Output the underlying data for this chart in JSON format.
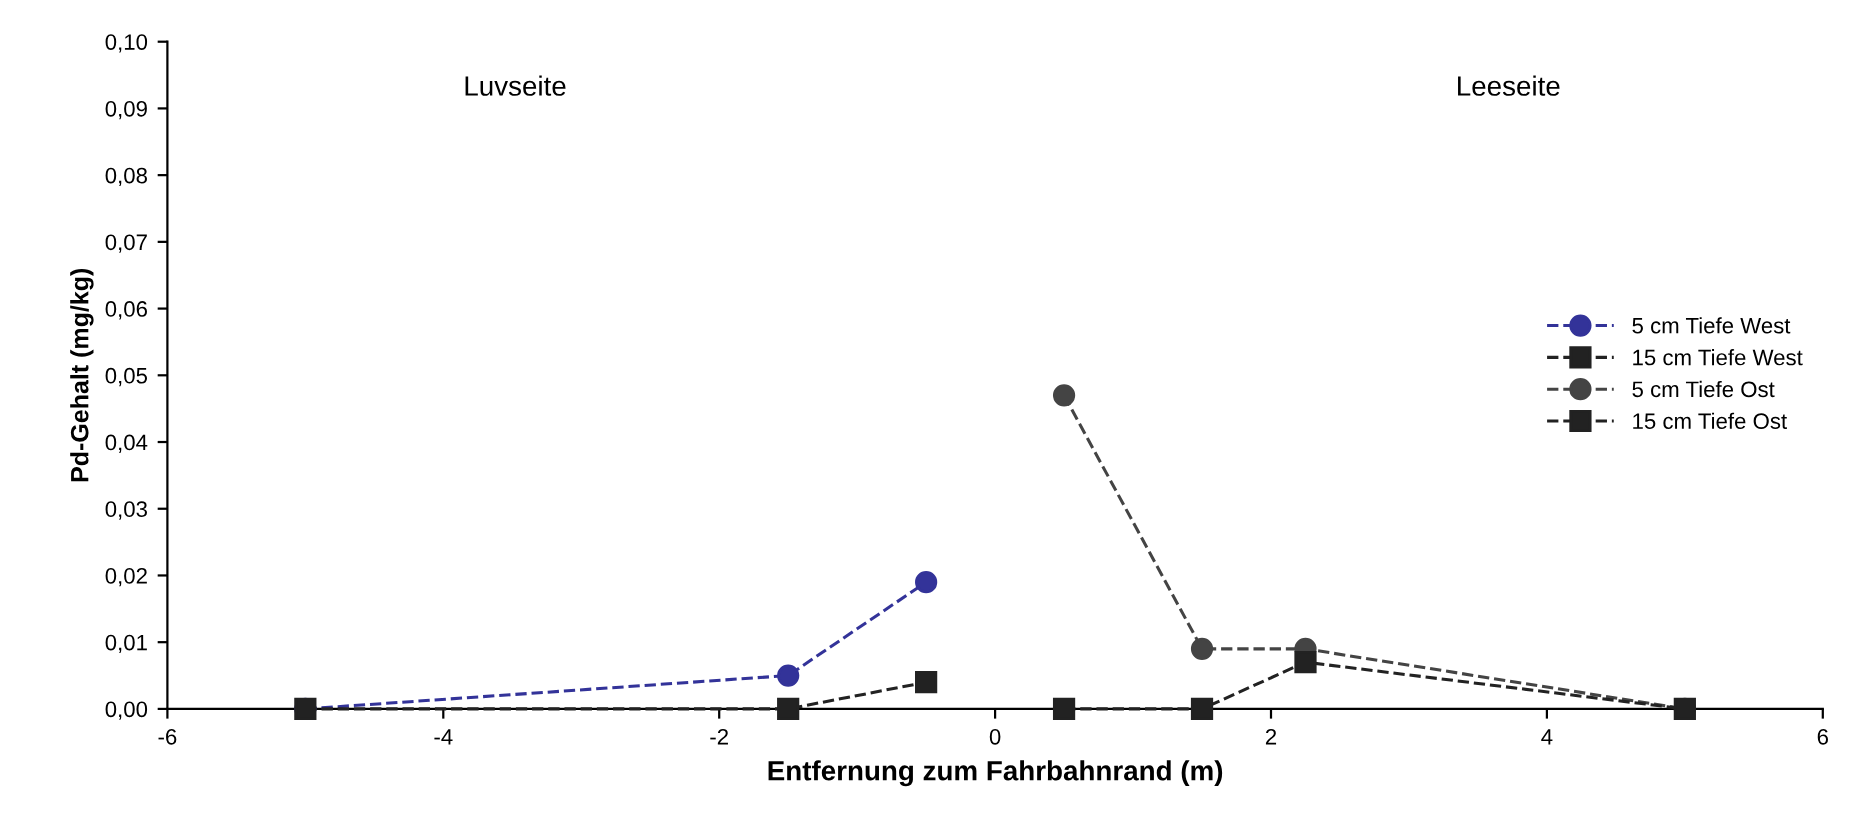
{
  "chart_data": {
    "type": "line",
    "xlabel": "Entfernung zum Fahrbahnrand (m)",
    "ylabel": "Pd-Gehalt (mg/kg)",
    "annotations": [
      "Luvseite",
      "Leeseite"
    ],
    "xlim": [
      -6,
      6
    ],
    "xticks": [
      {
        "value": -6,
        "label": "-6"
      },
      {
        "value": -4,
        "label": "-4"
      },
      {
        "value": -2,
        "label": "-2"
      },
      0,
      2,
      4,
      6
    ],
    "ylim": [
      0,
      0.1
    ],
    "yticks": [
      {
        "value": 0,
        "label": "0,00"
      },
      {
        "value": 0.01,
        "label": "0,01"
      },
      {
        "value": 0.02,
        "label": "0,02"
      },
      {
        "value": 0.03,
        "label": "0,03"
      },
      {
        "value": 0.04,
        "label": "0,04"
      },
      {
        "value": 0.05,
        "label": "0,05"
      },
      {
        "value": 0.06,
        "label": "0,06"
      },
      {
        "value": 0.07,
        "label": "0,07"
      },
      {
        "value": 0.08,
        "label": "0,08"
      },
      {
        "value": 0.09,
        "label": "0,09"
      },
      {
        "value": 0.1,
        "label": "0,10"
      }
    ],
    "grid": false,
    "legend": "right",
    "line_style": "dashed",
    "series": [
      {
        "name": "5 cm Tiefe West",
        "color": "#333399",
        "marker": "circle",
        "x": [
          -5,
          -1.5,
          -0.5
        ],
        "values": [
          0,
          0.005,
          0.019
        ]
      },
      {
        "name": "15 cm Tiefe West",
        "color": "#222222",
        "marker": "square",
        "x": [
          -5,
          -1.5,
          -0.5
        ],
        "values": [
          0,
          0,
          0.004
        ]
      },
      {
        "name": "5 cm Tiefe Ost",
        "color": "#444444",
        "marker": "circle",
        "x": [
          0.5,
          1.5,
          2.25,
          5
        ],
        "values": [
          0.047,
          0.009,
          0.009,
          0
        ]
      },
      {
        "name": "15 cm Tiefe Ost",
        "color": "#222222",
        "marker": "square",
        "x": [
          0.5,
          1.5,
          2.25,
          5
        ],
        "values": [
          0,
          0,
          0.007,
          0
        ]
      }
    ]
  }
}
